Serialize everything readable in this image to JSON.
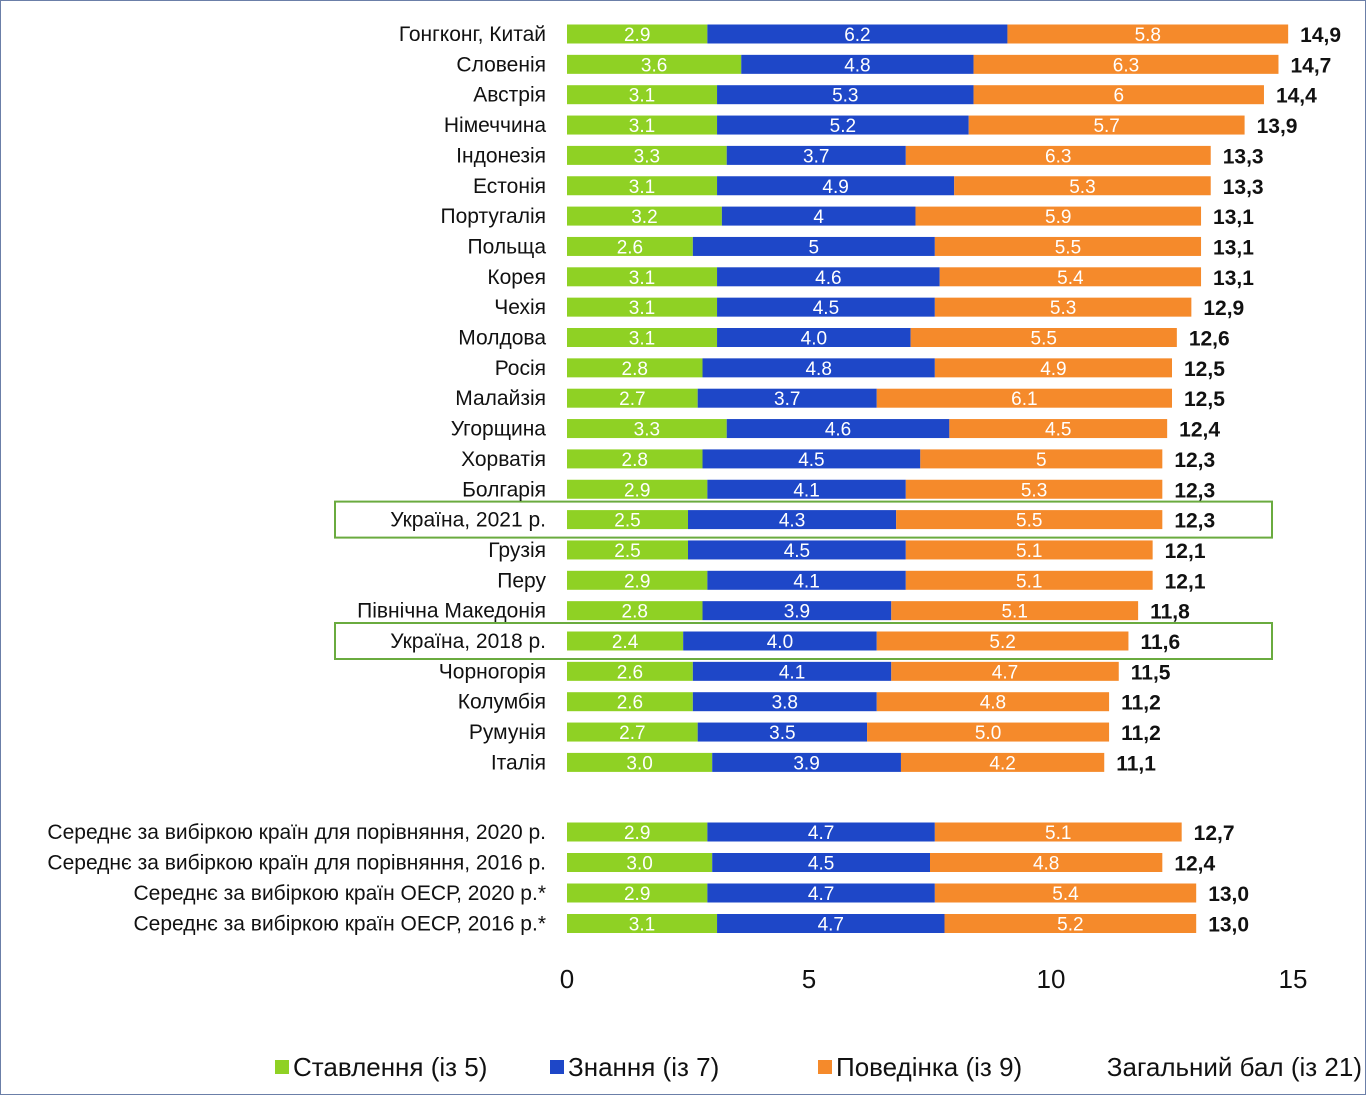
{
  "chart_data": {
    "type": "bar",
    "orientation": "horizontal",
    "stacked": true,
    "xlim": [
      0,
      15
    ],
    "xticks": [
      "0",
      "5",
      "10",
      "15"
    ],
    "grid": false,
    "legend_position": "bottom",
    "categories": [
      "Гонгконг, Китай",
      "Словенія",
      "Австрія",
      "Німеччина",
      "Індонезія",
      "Естонія",
      "Португалія",
      "Польща",
      "Корея",
      "Чехія",
      "Молдова",
      "Росія",
      "Малайзія",
      "Угорщина",
      "Хорватія",
      "Болгарія",
      "Україна, 2021 р.",
      "Грузія",
      "Перу",
      "Північна Македонія",
      "Україна, 2018 р.",
      "Чорногорія",
      "Колумбія",
      "Румунія",
      "Італія",
      "Середнє за вибіркою країн для порівняння, 2020 р.",
      "Середнє за вибіркою країн для порівняння, 2016 р.",
      "Середнє за вибіркою країн ОЕСР, 2020 р.*",
      "Середнє за вибіркою країн ОЕСР, 2016 р.*"
    ],
    "highlighted": [
      "Україна, 2021 р.",
      "Україна, 2018 р."
    ],
    "series": [
      {
        "name": "Ставлення (із 5)",
        "color": "#8fd124",
        "values": [
          2.9,
          3.6,
          3.1,
          3.1,
          3.3,
          3.1,
          3.2,
          2.6,
          3.1,
          3.1,
          3.1,
          2.8,
          2.7,
          3.3,
          2.8,
          2.9,
          2.5,
          2.5,
          2.9,
          2.8,
          2.4,
          2.6,
          2.6,
          2.7,
          3.0,
          2.9,
          3.0,
          2.9,
          3.1
        ],
        "labels": [
          "2.9",
          "3.6",
          "3.1",
          "3.1",
          "3.3",
          "3.1",
          "3.2",
          "2.6",
          "3.1",
          "3.1",
          "3.1",
          "2.8",
          "2.7",
          "3.3",
          "2.8",
          "2.9",
          "2.5",
          "2.5",
          "2.9",
          "2.8",
          "2.4",
          "2.6",
          "2.6",
          "2.7",
          "3.0",
          "2.9",
          "3.0",
          "2.9",
          "3.1"
        ]
      },
      {
        "name": "Знання (із 7)",
        "color": "#1e47c8",
        "values": [
          6.2,
          4.8,
          5.3,
          5.2,
          3.7,
          4.9,
          4.0,
          5.0,
          4.6,
          4.5,
          4.0,
          4.8,
          3.7,
          4.6,
          4.5,
          4.1,
          4.3,
          4.5,
          4.1,
          3.9,
          4.0,
          4.1,
          3.8,
          3.5,
          3.9,
          4.7,
          4.5,
          4.7,
          4.7
        ],
        "labels": [
          "6.2",
          "4.8",
          "5.3",
          "5.2",
          "3.7",
          "4.9",
          "4",
          "5",
          "4.6",
          "4.5",
          "4.0",
          "4.8",
          "3.7",
          "4.6",
          "4.5",
          "4.1",
          "4.3",
          "4.5",
          "4.1",
          "3.9",
          "4.0",
          "4.1",
          "3.8",
          "3.5",
          "3.9",
          "4.7",
          "4.5",
          "4.7",
          "4.7"
        ]
      },
      {
        "name": "Поведінка (із 9)",
        "color": "#f58a2b",
        "values": [
          5.8,
          6.3,
          6.0,
          5.7,
          6.3,
          5.3,
          5.9,
          5.5,
          5.4,
          5.3,
          5.5,
          4.9,
          6.1,
          4.5,
          5.0,
          5.3,
          5.5,
          5.1,
          5.1,
          5.1,
          5.2,
          4.7,
          4.8,
          5.0,
          4.2,
          5.1,
          4.8,
          5.4,
          5.2
        ],
        "labels": [
          "5.8",
          "6.3",
          "6",
          "5.7",
          "6.3",
          "5.3",
          "5.9",
          "5.5",
          "5.4",
          "5.3",
          "5.5",
          "4.9",
          "6.1",
          "4.5",
          "5",
          "5.3",
          "5.5",
          "5.1",
          "5.1",
          "5.1",
          "5.2",
          "4.7",
          "4.8",
          "5.0",
          "4.2",
          "5.1",
          "4.8",
          "5.4",
          "5.2"
        ]
      }
    ],
    "totals": {
      "name": "Загальний бал (із 21)",
      "values": [
        14.9,
        14.7,
        14.4,
        13.9,
        13.3,
        13.3,
        13.1,
        13.1,
        13.1,
        12.9,
        12.6,
        12.5,
        12.5,
        12.4,
        12.3,
        12.3,
        12.3,
        12.1,
        12.1,
        11.8,
        11.6,
        11.5,
        11.2,
        11.2,
        11.1,
        12.7,
        12.4,
        13.0,
        13.0
      ],
      "labels": [
        "14,9",
        "14,7",
        "14,4",
        "13,9",
        "13,3",
        "13,3",
        "13,1",
        "13,1",
        "13,1",
        "12,9",
        "12,6",
        "12,5",
        "12,5",
        "12,4",
        "12,3",
        "12,3",
        "12,3",
        "12,1",
        "12,1",
        "11,8",
        "11,6",
        "11,5",
        "11,2",
        "11,2",
        "11,1",
        "12,7",
        "12,4",
        "13,0",
        "13,0"
      ]
    }
  }
}
